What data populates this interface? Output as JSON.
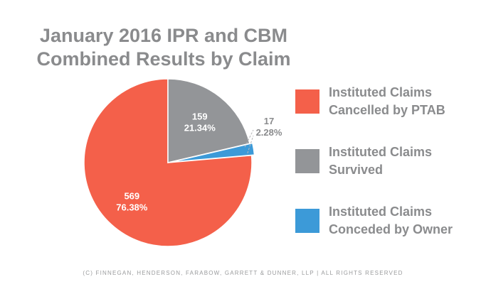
{
  "chart_data": {
    "type": "pie",
    "title": "January 2016 IPR and CBM\nCombined Results by Claim",
    "slices": [
      {
        "name": "Instituted Claims\nCancelled by PTAB",
        "value": 569,
        "percent": "76.38%",
        "color": "#f4604a"
      },
      {
        "name": "Instituted Claims\nSurvived",
        "value": 159,
        "percent": "21.34%",
        "color": "#939598"
      },
      {
        "name": "Instituted Claims\nConceded by Owner",
        "value": 17,
        "percent": "2.28%",
        "color": "#3c9ad8"
      }
    ],
    "legend_position": "right"
  },
  "footer": "(C) FINNEGAN, HENDERSON, FARABOW, GARRETT & DUNNER, LLP | ALL RIGHTS RESERVED"
}
